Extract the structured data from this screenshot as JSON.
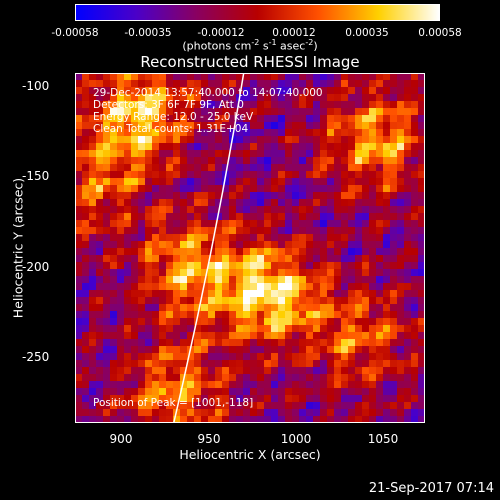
{
  "colorbar": {
    "ticks": [
      "-0.00058",
      "-0.00035",
      "-0.00012",
      "0.00012",
      "0.00035",
      "0.00058"
    ],
    "units_prefix": "(photons cm",
    "units_exp1": "-2",
    "units_mid": " s",
    "units_exp2": "-1",
    "units_mid2": " asec",
    "units_exp3": "-2",
    "units_suffix": ")",
    "colors": [
      "#0000ff",
      "#4b00c8",
      "#8a0060",
      "#b80000",
      "#ff5000",
      "#ffd000",
      "#ffffff"
    ]
  },
  "title": "Reconstructed RHESSI Image",
  "annotations": {
    "time_range": "29-Dec-2014 13:57:40.000 to 14:07:40.000",
    "detectors": "Detectors: 3F 6F 7F 9F, Att 0",
    "energy": "Energy Range: 12.0 - 25.0 keV",
    "clean": "Clean     Total counts: 1.31E+04"
  },
  "peak_label": "Position of Peak = [1001,-118]",
  "x_axis": {
    "label": "Heliocentric X (arcsec)",
    "ticks": [
      "900",
      "950",
      "1000",
      "1050"
    ],
    "range": [
      875,
      1070
    ]
  },
  "y_axis": {
    "label": "Heliocentric Y (arcsec)",
    "ticks": [
      "-100",
      "-150",
      "-200",
      "-250"
    ],
    "range": [
      -290,
      -95
    ]
  },
  "limb_line": {
    "x": [
      930,
      969
    ],
    "y": [
      -290,
      -95
    ]
  },
  "timestamp": "21-Sep-2017 07:14"
}
